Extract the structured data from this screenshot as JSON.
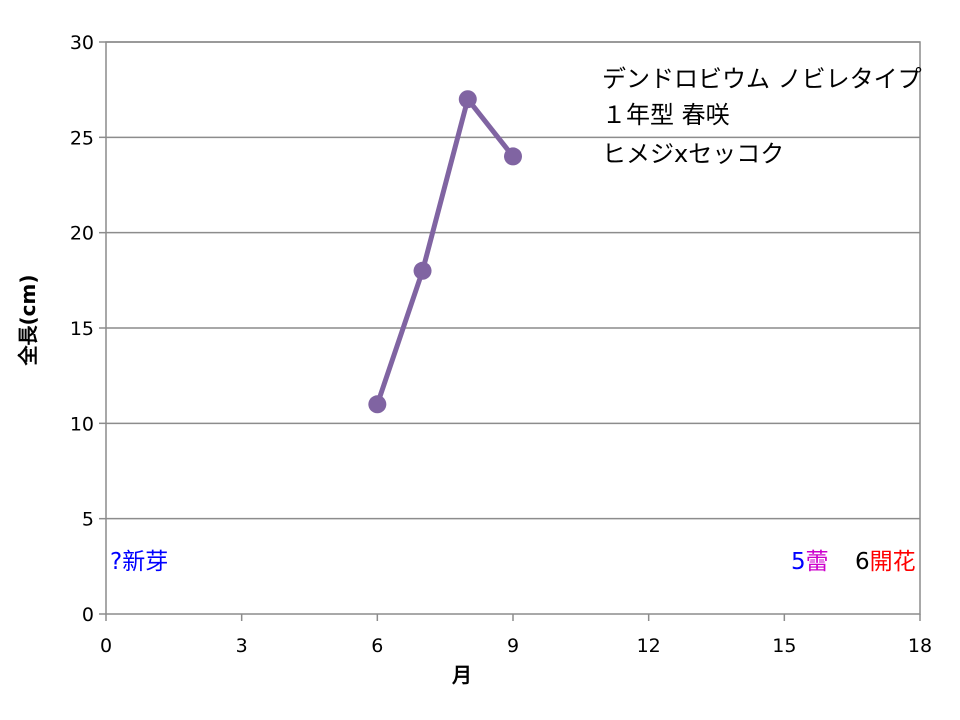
{
  "chart_data": {
    "type": "line",
    "xlabel": "月",
    "ylabel": "全長(cm)",
    "xlim": [
      0,
      18
    ],
    "ylim": [
      0,
      30
    ],
    "xticks": [
      0,
      3,
      6,
      9,
      12,
      15,
      18
    ],
    "yticks": [
      0,
      5,
      10,
      15,
      20,
      25,
      30
    ],
    "grid": true,
    "series": [
      {
        "color": "#8064a2",
        "points": [
          {
            "x": 6,
            "y": 11
          },
          {
            "x": 7,
            "y": 18
          },
          {
            "x": 8,
            "y": 27
          },
          {
            "x": 9,
            "y": 24
          }
        ]
      }
    ],
    "info_lines": [
      "デンドロビウム ノビレタイプ",
      "１年型 春咲",
      "ヒメジxセッコク"
    ],
    "annotations": {
      "new_shoot": {
        "month": "?",
        "label": "新芽",
        "month_color": "#0000ff",
        "label_color": "#0000ff"
      },
      "bud": {
        "month": "5",
        "label": "蕾",
        "month_color": "#0000ff",
        "label_color": "#cc00cc"
      },
      "bloom": {
        "month": "6",
        "label": "開花",
        "month_color": "#000000",
        "label_color": "#ff0000"
      }
    }
  }
}
